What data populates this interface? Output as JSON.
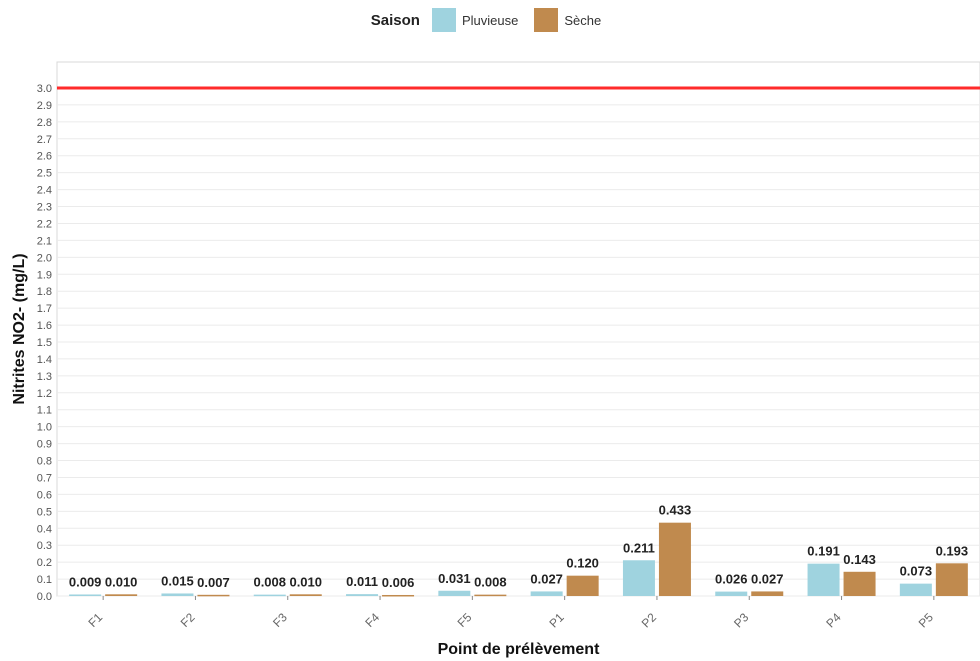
{
  "chart_data": {
    "type": "bar",
    "legend": {
      "title": "Saison",
      "placement": "top"
    },
    "categories": [
      "F1",
      "F2",
      "F3",
      "F4",
      "F5",
      "P1",
      "P2",
      "P3",
      "P4",
      "P5"
    ],
    "series": [
      {
        "name": "Pluvieuse",
        "color": "#9fd3df",
        "values": [
          0.009,
          0.015,
          0.008,
          0.011,
          0.031,
          0.027,
          0.211,
          0.026,
          0.191,
          0.073
        ]
      },
      {
        "name": "Sèche",
        "color": "#c08a4e",
        "values": [
          0.01,
          0.007,
          0.01,
          0.006,
          0.008,
          0.12,
          0.433,
          0.027,
          0.143,
          0.193
        ]
      }
    ],
    "value_labels": [
      [
        "0.009",
        "0.015",
        "0.008",
        "0.011",
        "0.031",
        "0.027",
        "0.211",
        "0.026",
        "0.191",
        "0.073"
      ],
      [
        "0.010",
        "0.007",
        "0.010",
        "0.006",
        "0.008",
        "0.120",
        "0.433",
        "0.027",
        "0.143",
        "0.193"
      ]
    ],
    "xlabel": "Point de prélèvement",
    "ylabel": "Nitrites NO2- (mg/L)",
    "ylim": [
      0,
      3.0
    ],
    "ytick_step": 0.1,
    "ytick_labels": [
      "0.0",
      "0.1",
      "0.2",
      "0.3",
      "0.4",
      "0.5",
      "0.6",
      "0.7",
      "0.8",
      "0.9",
      "1.0",
      "1.1",
      "1.2",
      "1.3",
      "1.4",
      "1.5",
      "1.6",
      "1.7",
      "1.8",
      "1.9",
      "2.0",
      "2.1",
      "2.2",
      "2.3",
      "2.4",
      "2.5",
      "2.6",
      "2.7",
      "2.8",
      "2.9",
      "3.0"
    ],
    "reference_line": {
      "value": 3.0,
      "color": "#ff2b2b"
    },
    "grid": true
  }
}
